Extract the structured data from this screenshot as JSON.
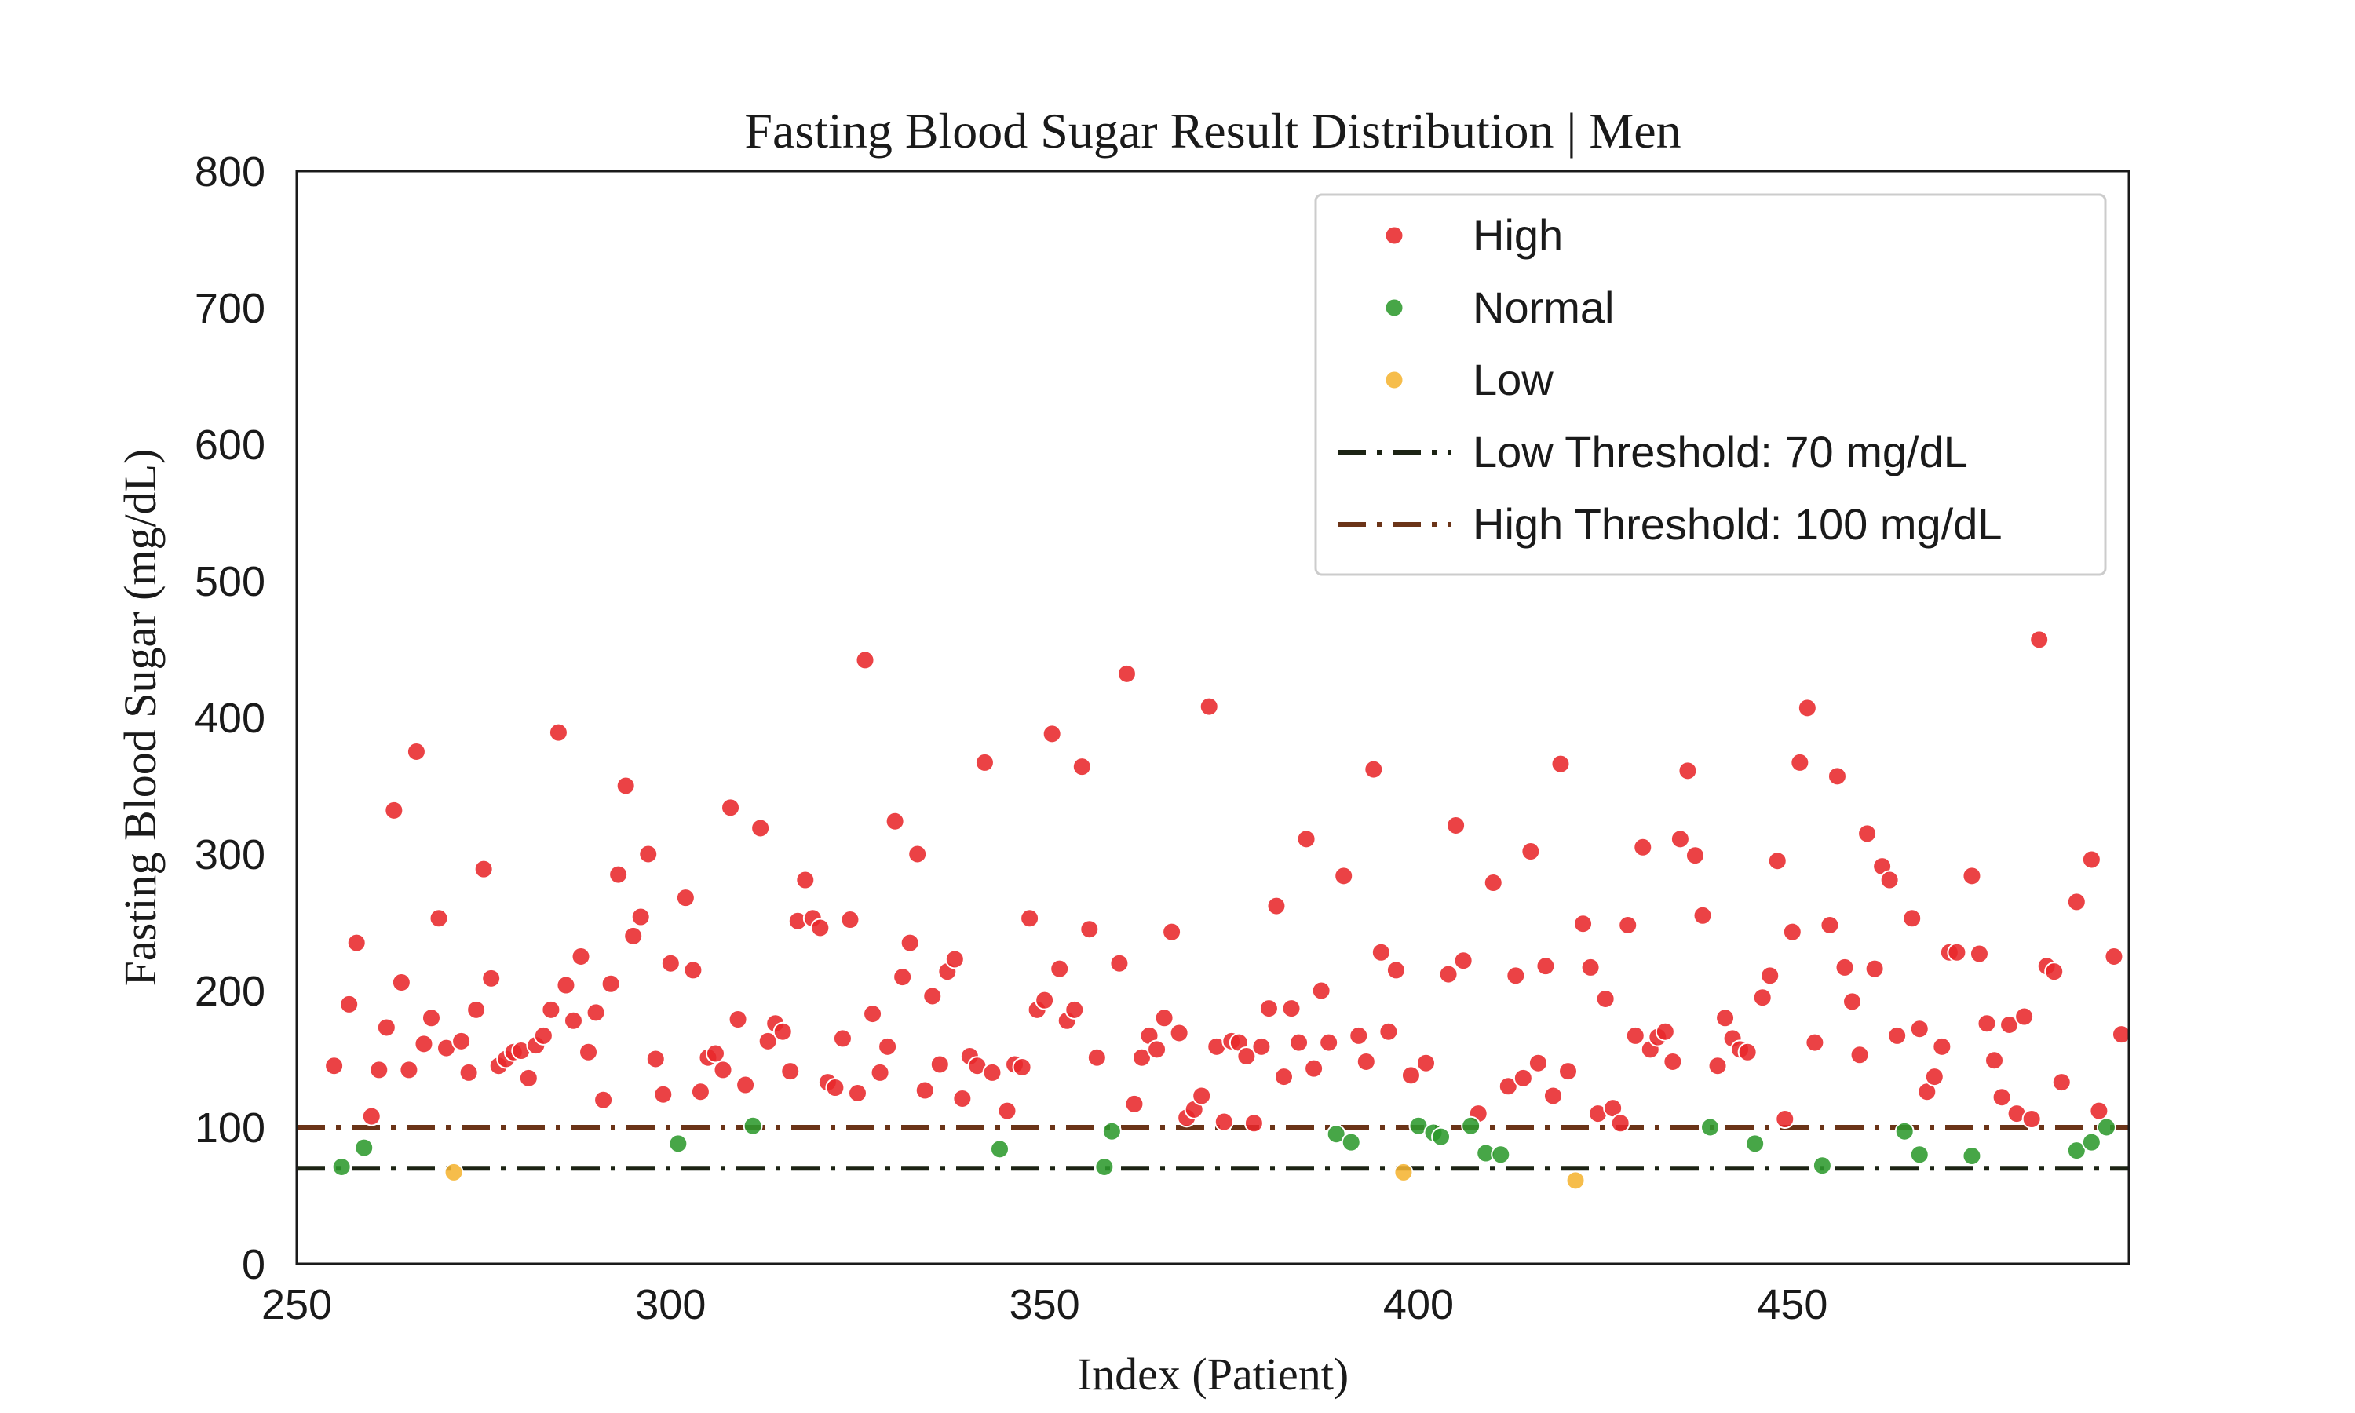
{
  "chart_data": {
    "type": "scatter",
    "title": "Fasting Blood Sugar Result Distribution | Men",
    "xlabel": "Index (Patient)",
    "ylabel": "Fasting Blood Sugar (mg/dL)",
    "xlim": [
      250,
      495
    ],
    "ylim": [
      0,
      800
    ],
    "xticks": [
      250,
      300,
      350,
      400,
      450
    ],
    "yticks": [
      0,
      100,
      200,
      300,
      400,
      500,
      600,
      700,
      800
    ],
    "grid": false,
    "legend_position": "top-right",
    "series": [
      {
        "name": "High",
        "color": "#e8282b",
        "points": [
          [
            255,
            145
          ],
          [
            257,
            190
          ],
          [
            258,
            235
          ],
          [
            260,
            108
          ],
          [
            261,
            142
          ],
          [
            262,
            173
          ],
          [
            263,
            332
          ],
          [
            264,
            206
          ],
          [
            265,
            142
          ],
          [
            266,
            375
          ],
          [
            267,
            161
          ],
          [
            268,
            180
          ],
          [
            269,
            253
          ],
          [
            270,
            158
          ],
          [
            272,
            163
          ],
          [
            273,
            140
          ],
          [
            274,
            186
          ],
          [
            275,
            289
          ],
          [
            276,
            209
          ],
          [
            277,
            145
          ],
          [
            278,
            150
          ],
          [
            279,
            155
          ],
          [
            280,
            156
          ],
          [
            281,
            136
          ],
          [
            282,
            160
          ],
          [
            283,
            167
          ],
          [
            284,
            186
          ],
          [
            285,
            389
          ],
          [
            286,
            204
          ],
          [
            287,
            178
          ],
          [
            288,
            225
          ],
          [
            289,
            155
          ],
          [
            290,
            184
          ],
          [
            291,
            120
          ],
          [
            292,
            205
          ],
          [
            293,
            285
          ],
          [
            294,
            350
          ],
          [
            295,
            240
          ],
          [
            296,
            254
          ],
          [
            297,
            300
          ],
          [
            298,
            150
          ],
          [
            299,
            124
          ],
          [
            300,
            220
          ],
          [
            302,
            268
          ],
          [
            303,
            215
          ],
          [
            304,
            126
          ],
          [
            305,
            151
          ],
          [
            306,
            154
          ],
          [
            307,
            142
          ],
          [
            308,
            334
          ],
          [
            309,
            179
          ],
          [
            310,
            131
          ],
          [
            312,
            319
          ],
          [
            313,
            163
          ],
          [
            314,
            176
          ],
          [
            315,
            170
          ],
          [
            316,
            141
          ],
          [
            317,
            251
          ],
          [
            318,
            281
          ],
          [
            319,
            253
          ],
          [
            320,
            246
          ],
          [
            321,
            133
          ],
          [
            322,
            129
          ],
          [
            323,
            165
          ],
          [
            324,
            252
          ],
          [
            325,
            125
          ],
          [
            326,
            442
          ],
          [
            327,
            183
          ],
          [
            328,
            140
          ],
          [
            329,
            159
          ],
          [
            330,
            324
          ],
          [
            331,
            210
          ],
          [
            332,
            235
          ],
          [
            333,
            300
          ],
          [
            334,
            127
          ],
          [
            335,
            196
          ],
          [
            336,
            146
          ],
          [
            337,
            214
          ],
          [
            338,
            223
          ],
          [
            339,
            121
          ],
          [
            340,
            152
          ],
          [
            341,
            145
          ],
          [
            342,
            367
          ],
          [
            343,
            140
          ],
          [
            345,
            112
          ],
          [
            346,
            146
          ],
          [
            347,
            144
          ],
          [
            348,
            253
          ],
          [
            349,
            186
          ],
          [
            350,
            193
          ],
          [
            351,
            388
          ],
          [
            352,
            216
          ],
          [
            353,
            178
          ],
          [
            354,
            186
          ],
          [
            355,
            364
          ],
          [
            356,
            245
          ],
          [
            357,
            151
          ],
          [
            360,
            220
          ],
          [
            361,
            432
          ],
          [
            362,
            117
          ],
          [
            363,
            151
          ],
          [
            364,
            167
          ],
          [
            365,
            157
          ],
          [
            366,
            180
          ],
          [
            367,
            243
          ],
          [
            368,
            169
          ],
          [
            369,
            107
          ],
          [
            370,
            113
          ],
          [
            371,
            123
          ],
          [
            372,
            408
          ],
          [
            373,
            159
          ],
          [
            374,
            104
          ],
          [
            375,
            163
          ],
          [
            376,
            162
          ],
          [
            377,
            152
          ],
          [
            378,
            103
          ],
          [
            379,
            159
          ],
          [
            380,
            187
          ],
          [
            381,
            262
          ],
          [
            382,
            137
          ],
          [
            383,
            187
          ],
          [
            384,
            162
          ],
          [
            385,
            311
          ],
          [
            386,
            143
          ],
          [
            387,
            200
          ],
          [
            388,
            162
          ],
          [
            390,
            284
          ],
          [
            392,
            167
          ],
          [
            393,
            148
          ],
          [
            394,
            362
          ],
          [
            395,
            228
          ],
          [
            396,
            170
          ],
          [
            397,
            215
          ],
          [
            399,
            138
          ],
          [
            401,
            147
          ],
          [
            404,
            212
          ],
          [
            405,
            321
          ],
          [
            406,
            222
          ],
          [
            408,
            110
          ],
          [
            410,
            279
          ],
          [
            412,
            130
          ],
          [
            413,
            211
          ],
          [
            414,
            136
          ],
          [
            415,
            302
          ],
          [
            416,
            147
          ],
          [
            417,
            218
          ],
          [
            418,
            123
          ],
          [
            419,
            366
          ],
          [
            420,
            141
          ],
          [
            422,
            249
          ],
          [
            423,
            217
          ],
          [
            424,
            110
          ],
          [
            425,
            194
          ],
          [
            426,
            114
          ],
          [
            427,
            103
          ],
          [
            428,
            248
          ],
          [
            429,
            167
          ],
          [
            430,
            305
          ],
          [
            431,
            157
          ],
          [
            432,
            166
          ],
          [
            433,
            170
          ],
          [
            434,
            148
          ],
          [
            435,
            311
          ],
          [
            436,
            361
          ],
          [
            437,
            299
          ],
          [
            438,
            255
          ],
          [
            440,
            145
          ],
          [
            441,
            180
          ],
          [
            442,
            165
          ],
          [
            443,
            157
          ],
          [
            444,
            155
          ],
          [
            446,
            195
          ],
          [
            447,
            211
          ],
          [
            448,
            295
          ],
          [
            449,
            106
          ],
          [
            450,
            243
          ],
          [
            451,
            367
          ],
          [
            452,
            407
          ],
          [
            453,
            162
          ],
          [
            455,
            248
          ],
          [
            456,
            357
          ],
          [
            457,
            217
          ],
          [
            458,
            192
          ],
          [
            459,
            153
          ],
          [
            460,
            315
          ],
          [
            461,
            216
          ],
          [
            462,
            291
          ],
          [
            463,
            281
          ],
          [
            464,
            167
          ],
          [
            466,
            253
          ],
          [
            467,
            172
          ],
          [
            468,
            126
          ],
          [
            469,
            137
          ],
          [
            470,
            159
          ],
          [
            471,
            228
          ],
          [
            472,
            228
          ],
          [
            474,
            284
          ],
          [
            475,
            227
          ],
          [
            476,
            176
          ],
          [
            477,
            149
          ],
          [
            478,
            122
          ],
          [
            479,
            175
          ],
          [
            480,
            110
          ],
          [
            481,
            181
          ],
          [
            482,
            106
          ],
          [
            483,
            457
          ],
          [
            484,
            218
          ],
          [
            485,
            214
          ],
          [
            486,
            133
          ],
          [
            488,
            265
          ],
          [
            490,
            296
          ],
          [
            491,
            112
          ],
          [
            493,
            225
          ],
          [
            494,
            168
          ]
        ]
      },
      {
        "name": "Normal",
        "color": "#2e9a2e",
        "points": [
          [
            256,
            71
          ],
          [
            259,
            85
          ],
          [
            301,
            88
          ],
          [
            311,
            101
          ],
          [
            344,
            84
          ],
          [
            358,
            71
          ],
          [
            359,
            97
          ],
          [
            389,
            95
          ],
          [
            391,
            89
          ],
          [
            400,
            101
          ],
          [
            402,
            96
          ],
          [
            403,
            93
          ],
          [
            407,
            101
          ],
          [
            409,
            81
          ],
          [
            411,
            80
          ],
          [
            439,
            100
          ],
          [
            445,
            88
          ],
          [
            454,
            72
          ],
          [
            465,
            97
          ],
          [
            467,
            80
          ],
          [
            474,
            79
          ],
          [
            488,
            83
          ],
          [
            490,
            89
          ],
          [
            492,
            100
          ]
        ]
      },
      {
        "name": "Low",
        "color": "#f5b432",
        "points": [
          [
            271,
            67
          ],
          [
            398,
            67
          ],
          [
            421,
            61
          ]
        ]
      }
    ],
    "thresholds": [
      {
        "name": "Low Threshold: 70 mg/dL",
        "value": 70,
        "color": "#1c2314"
      },
      {
        "name": "High Threshold: 100 mg/dL",
        "value": 100,
        "color": "#6b3418"
      }
    ]
  }
}
